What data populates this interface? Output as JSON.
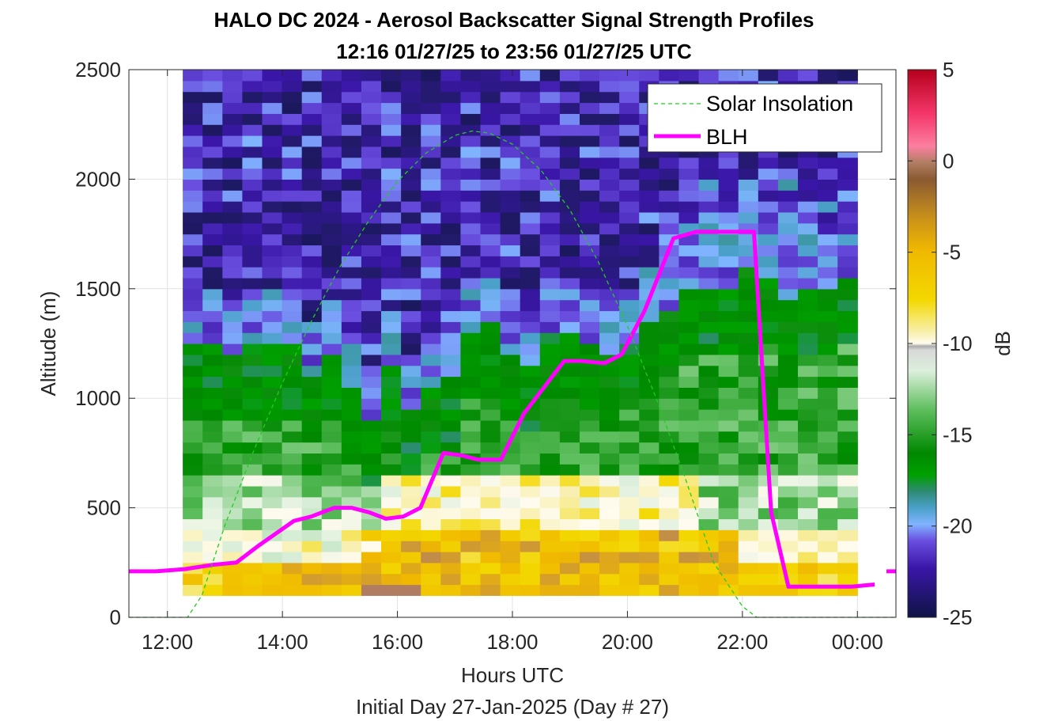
{
  "chart_data": {
    "type": "heatmap",
    "title": "HALO DC 2024 - Aerosol Backscatter Signal Strength Profiles",
    "subtitle": "12:16 01/27/25 to 23:56 01/27/25  UTC",
    "xlabel": "Hours UTC",
    "xlabel2": "Initial Day 27-Jan-2025 (Day # 27)",
    "ylabel": "Altitude (m)",
    "colorbar_label": "dB",
    "xlim": [
      11.33,
      24.67
    ],
    "ylim": [
      0,
      2500
    ],
    "clim": [
      -25,
      5
    ],
    "x_ticks": [
      12,
      14,
      16,
      18,
      20,
      22,
      24
    ],
    "x_tick_labels": [
      "12:00",
      "14:00",
      "16:00",
      "18:00",
      "20:00",
      "22:00",
      "00:00"
    ],
    "y_ticks": [
      0,
      500,
      1000,
      1500,
      2000,
      2500
    ],
    "y_tick_labels": [
      "0",
      "500",
      "1000",
      "1500",
      "2000",
      "2500"
    ],
    "colorbar_ticks": [
      5,
      0,
      -5,
      -10,
      -15,
      -20,
      -25
    ],
    "colorbar_tick_labels": [
      "5",
      "0",
      "-5",
      "-10",
      "-15",
      "-20",
      "-25"
    ],
    "grid": true,
    "legend_position": "top-right",
    "legend": [
      {
        "label": "Solar Insolation",
        "color": "#22cc22",
        "style": "dashed"
      },
      {
        "label": "BLH",
        "color": "#ff00ff",
        "style": "solid"
      }
    ],
    "heatmap": {
      "x_start": 12.2667,
      "x_end": 24.0,
      "y_start": 100,
      "y_end": 2500,
      "n_x": 34,
      "n_y": 48,
      "x_centers": [
        12.44,
        12.78,
        13.13,
        13.47,
        13.82,
        14.16,
        14.51,
        14.85,
        15.2,
        15.54,
        15.89,
        16.23,
        16.58,
        16.92,
        17.27,
        17.61,
        17.96,
        18.3,
        18.65,
        18.99,
        19.34,
        19.68,
        20.03,
        20.37,
        20.72,
        21.06,
        21.41,
        21.75,
        22.1,
        22.44,
        22.79,
        23.13,
        23.48,
        23.82
      ],
      "aerosol_top_m": [
        1250,
        1240,
        1220,
        1230,
        1260,
        1270,
        1120,
        1180,
        1050,
        900,
        1150,
        950,
        1050,
        1080,
        1300,
        1350,
        1200,
        1150,
        1300,
        1320,
        1250,
        1200,
        1250,
        1350,
        1400,
        1500,
        1480,
        1500,
        1580,
        1550,
        1460,
        1500,
        1520,
        1550
      ],
      "hot_bins": [
        {
          "x": 16.0,
          "y": 125,
          "dB": -3
        },
        {
          "x": 15.65,
          "y": 125,
          "dB": -3
        },
        {
          "x": 16.3,
          "y": 125,
          "dB": -3
        },
        {
          "x": 15.55,
          "y": 325,
          "dB": -10
        },
        {
          "x": 18.45,
          "y": 525,
          "dB": -10
        },
        {
          "x": 19.2,
          "y": 425,
          "dB": -10
        },
        {
          "x": 20.3,
          "y": 425,
          "dB": -10
        },
        {
          "x": 21.05,
          "y": 425,
          "dB": -10
        },
        {
          "x": 23.8,
          "y": 325,
          "dB": -10
        }
      ]
    },
    "series": [
      {
        "name": "BLH",
        "x": [
          11.33,
          11.8,
          12.3,
          12.8,
          13.2,
          13.6,
          14.2,
          14.5,
          14.9,
          15.2,
          15.5,
          15.8,
          16.1,
          16.4,
          16.8,
          17.1,
          17.4,
          17.8,
          18.2,
          18.9,
          19.2,
          19.6,
          19.9,
          20.3,
          20.8,
          21.2,
          21.6,
          21.9,
          22.2,
          22.5,
          22.8,
          23.2,
          23.5,
          23.9,
          24.3
        ],
        "y": [
          210,
          210,
          220,
          240,
          250,
          330,
          440,
          460,
          500,
          500,
          480,
          450,
          460,
          500,
          750,
          740,
          720,
          720,
          930,
          1170,
          1170,
          1160,
          1200,
          1400,
          1730,
          1760,
          1760,
          1760,
          1760,
          480,
          140,
          140,
          140,
          140,
          150
        ]
      },
      {
        "name": "BLH",
        "x": [
          24.67
        ],
        "y": [
          210
        ]
      },
      {
        "name": "Solar Insolation",
        "x": [
          11.33,
          12.35,
          12.6,
          13.0,
          13.5,
          14.0,
          14.5,
          15.0,
          15.5,
          16.0,
          16.5,
          17.0,
          17.3,
          17.6,
          18.0,
          18.5,
          19.0,
          19.5,
          20.0,
          20.5,
          21.0,
          21.5,
          22.0,
          22.25,
          24.67
        ],
        "y": [
          0,
          0,
          100,
          420,
          760,
          1070,
          1350,
          1600,
          1810,
          1990,
          2120,
          2200,
          2220,
          2210,
          2160,
          2040,
          1860,
          1620,
          1330,
          1000,
          640,
          250,
          50,
          0,
          0
        ]
      }
    ]
  }
}
